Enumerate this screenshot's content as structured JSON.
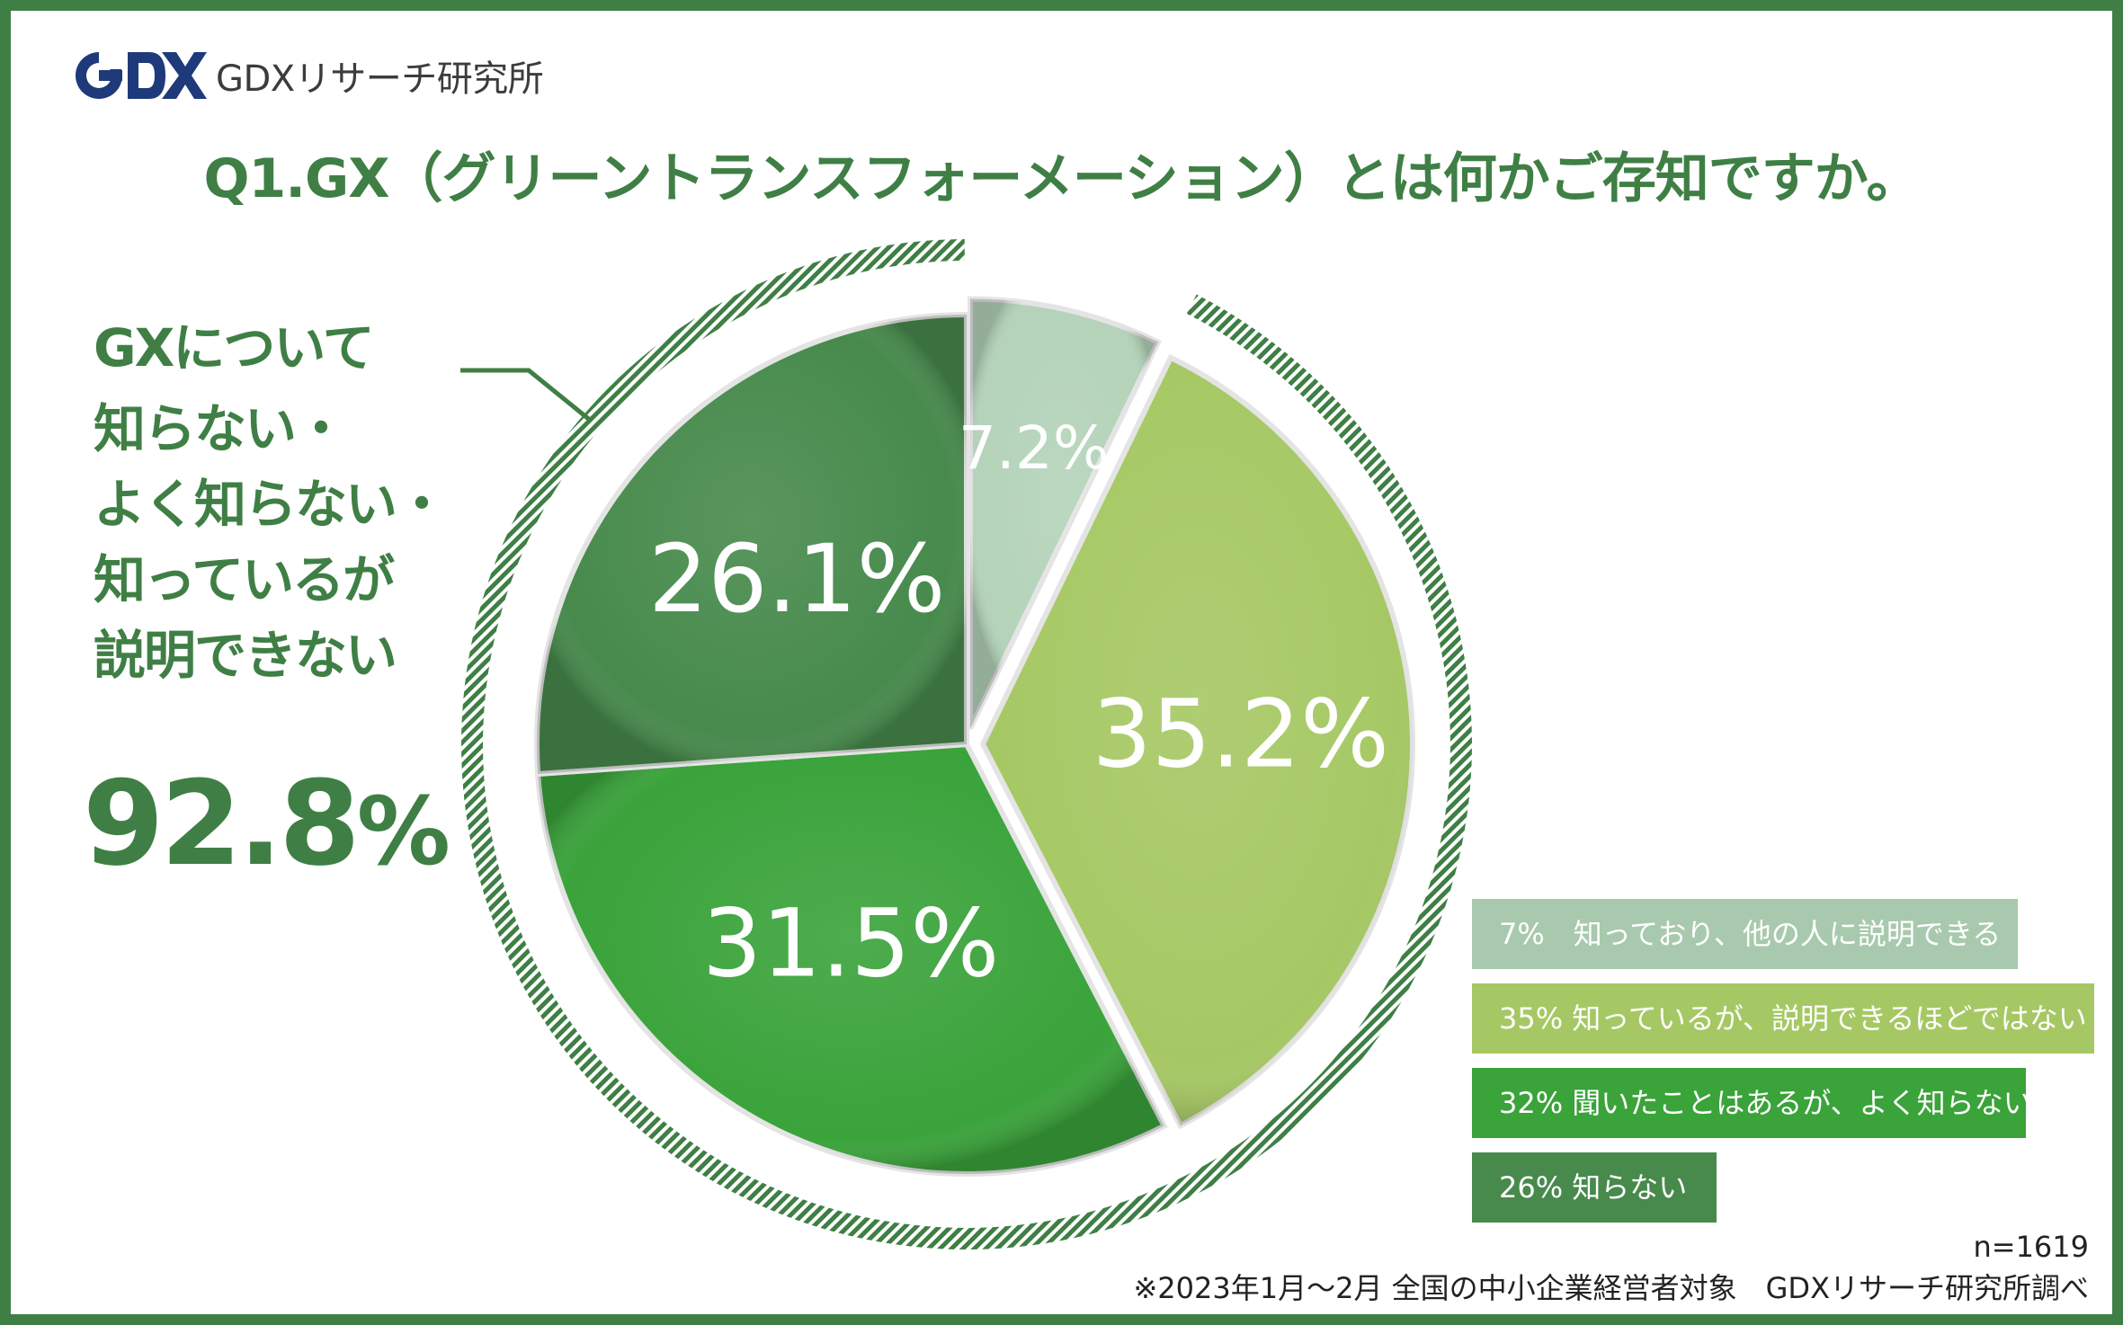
{
  "brand": {
    "logo_text": "GDX",
    "name": "GDXリサーチ研究所"
  },
  "title": "Q1.GX（グリーントランスフォーメーション）とは何かご存知ですか。",
  "callout": {
    "lines": [
      "GXについて",
      "知らない・",
      "よく知らない・",
      "知っているが",
      "説明できない"
    ],
    "value": "92.8",
    "unit": "%"
  },
  "chart_data": {
    "type": "pie",
    "slices": [
      {
        "label": "7%　知っており、他の人に説明できる",
        "value": 7.2,
        "display": "7.2%",
        "color": "#b4d3b9"
      },
      {
        "label": "35% 知っているが、説明できるほどではない",
        "value": 35.2,
        "display": "35.2%",
        "color": "#a6c864"
      },
      {
        "label": "32% 聞いたことはあるが、よく知らない",
        "value": 31.5,
        "display": "31.5%",
        "color": "#3aa33a"
      },
      {
        "label": "26% 知らない",
        "value": 26.1,
        "display": "26.1%",
        "color": "#478a4c"
      }
    ],
    "legend_position": "bottom-right"
  },
  "footer": {
    "n": "n=1619",
    "note": "※2023年1月～2月 全国の中小企業経営者対象　GDXリサーチ研究所調べ"
  },
  "colors": {
    "accent": "#3f7f45",
    "legend": [
      "#a8c9ad",
      "#a6c864",
      "#3aa33a",
      "#478a4c"
    ]
  }
}
